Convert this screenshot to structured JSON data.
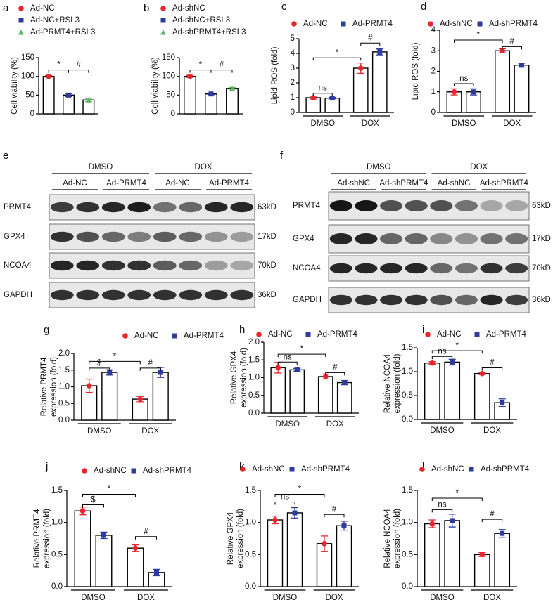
{
  "chart_data": [
    {
      "type": "bar",
      "panel": "a",
      "ylabel": "Cell viability (%)",
      "ylim": [
        0,
        150
      ],
      "yticks": [
        0,
        50,
        100,
        150
      ],
      "categories": [
        null
      ],
      "series": [
        {
          "name": "Ad-NC",
          "color": "#e6262b",
          "marker": "circle",
          "values": [
            100
          ],
          "errors": [
            2
          ]
        },
        {
          "name": "Ad-NC+RSL3",
          "color": "#2f3a9e",
          "marker": "square",
          "values": [
            50
          ],
          "errors": [
            4
          ]
        },
        {
          "name": "Ad-PRMT4+RSL3",
          "color": "#5cb85c",
          "marker": "triangle",
          "values": [
            37
          ],
          "errors": [
            4
          ]
        }
      ],
      "annotations": [
        "*",
        "#"
      ]
    },
    {
      "type": "bar",
      "panel": "b",
      "ylabel": "Cell viability (%)",
      "ylim": [
        0,
        150
      ],
      "yticks": [
        0,
        50,
        100,
        150
      ],
      "categories": [
        null
      ],
      "series": [
        {
          "name": "Ad-shNC",
          "color": "#e6262b",
          "marker": "circle",
          "values": [
            100
          ],
          "errors": [
            3
          ]
        },
        {
          "name": "Ad-shNC+RSL3",
          "color": "#2f3a9e",
          "marker": "square",
          "values": [
            53
          ],
          "errors": [
            2
          ]
        },
        {
          "name": "Ad-shPRMT4+RSL3",
          "color": "#5cb85c",
          "marker": "triangle",
          "values": [
            68
          ],
          "errors": [
            2
          ]
        }
      ],
      "annotations": [
        "*",
        "#"
      ]
    },
    {
      "type": "bar",
      "panel": "c",
      "ylabel": "Lipid ROS (fold)",
      "ylim": [
        0,
        5
      ],
      "yticks": [
        0,
        1,
        2,
        3,
        4,
        5
      ],
      "categories": [
        "DMSO",
        "DOX"
      ],
      "series": [
        {
          "name": "Ad-NC",
          "color": "#e6262b",
          "marker": "circle",
          "values": [
            1.0,
            3.0
          ],
          "errors": [
            0.1,
            0.35
          ]
        },
        {
          "name": "Ad-PRMT4",
          "color": "#2f3a9e",
          "marker": "square",
          "values": [
            0.97,
            4.1
          ],
          "errors": [
            0.05,
            0.2
          ]
        }
      ],
      "annotations": [
        "ns",
        "*",
        "#"
      ]
    },
    {
      "type": "bar",
      "panel": "d",
      "ylabel": "Lipid ROS (fold)",
      "ylim": [
        0,
        4
      ],
      "yticks": [
        0,
        1,
        2,
        3,
        4
      ],
      "categories": [
        "DMSO",
        "DOX"
      ],
      "series": [
        {
          "name": "Ad-shNC",
          "color": "#e6262b",
          "marker": "circle",
          "values": [
            1.0,
            3.0
          ],
          "errors": [
            0.15,
            0.1
          ]
        },
        {
          "name": "Ad-shPRMT4",
          "color": "#2f3a9e",
          "marker": "square",
          "values": [
            1.0,
            2.3
          ],
          "errors": [
            0.15,
            0.1
          ]
        }
      ],
      "annotations": [
        "ns",
        "*",
        "#"
      ]
    },
    {
      "type": "bar",
      "panel": "g",
      "ylabel": [
        "Relative PRMT4",
        "expression (fold)"
      ],
      "ylim": [
        0,
        2
      ],
      "yticks": [
        {
          "value": 0,
          "label": "0.0"
        },
        0.5,
        {
          "value": 1,
          "label": "1.0"
        },
        1.5,
        {
          "value": 2,
          "label": "2.0"
        }
      ],
      "categories": [
        "DMSO",
        "DOX"
      ],
      "series": [
        {
          "name": "Ad-NC",
          "color": "#e6262b",
          "marker": "circle",
          "values": [
            1.03,
            0.63
          ],
          "errors": [
            0.2,
            0.08
          ]
        },
        {
          "name": "Ad-PRMT4",
          "color": "#2f3a9e",
          "marker": "square",
          "values": [
            1.43,
            1.43
          ],
          "errors": [
            0.08,
            0.15
          ]
        }
      ],
      "annotations": [
        "$",
        "*",
        "#"
      ]
    },
    {
      "type": "bar",
      "panel": "h",
      "ylabel": [
        "Relative GPX4",
        "expression (fold)"
      ],
      "ylim": [
        0,
        2
      ],
      "yticks": [
        {
          "value": 0,
          "label": "0.0"
        },
        0.5,
        {
          "value": 1,
          "label": "1.0"
        },
        1.5,
        {
          "value": 2,
          "label": "2.0"
        }
      ],
      "categories": [
        "DMSO",
        "DOX"
      ],
      "series": [
        {
          "name": "Ad-NC",
          "color": "#e6262b",
          "marker": "circle",
          "values": [
            1.28,
            1.03
          ],
          "errors": [
            0.15,
            0.07
          ]
        },
        {
          "name": "Ad-PRMT4",
          "color": "#2f3a9e",
          "marker": "square",
          "values": [
            1.22,
            0.86
          ],
          "errors": [
            0.04,
            0.06
          ]
        }
      ],
      "annotations": [
        "ns",
        "*",
        "#"
      ]
    },
    {
      "type": "bar",
      "panel": "i",
      "ylabel": [
        "Relative NCOA4",
        "expression (fold)"
      ],
      "ylim": [
        0,
        1.5
      ],
      "yticks": [
        {
          "value": 0,
          "label": "0.0"
        },
        0.5,
        {
          "value": 1,
          "label": "1.0"
        },
        1.5
      ],
      "categories": [
        "DMSO",
        "DOX"
      ],
      "series": [
        {
          "name": "Ad-NC",
          "color": "#e6262b",
          "marker": "circle",
          "values": [
            1.18,
            0.96
          ],
          "errors": [
            0.03,
            0.02
          ]
        },
        {
          "name": "Ad-PRMT4",
          "color": "#2f3a9e",
          "marker": "square",
          "values": [
            1.2,
            0.35
          ],
          "errors": [
            0.06,
            0.08
          ]
        }
      ],
      "annotations": [
        "ns",
        "*",
        "#"
      ]
    },
    {
      "type": "bar",
      "panel": "j",
      "ylabel": [
        "Relative PRMT4",
        "expression (fold)"
      ],
      "ylim": [
        0,
        1.5
      ],
      "yticks": [
        {
          "value": 0,
          "label": "0.0"
        },
        0.5,
        {
          "value": 1,
          "label": "1.0"
        },
        1.5
      ],
      "categories": [
        "DMSO",
        "DOX"
      ],
      "series": [
        {
          "name": "Ad-shNC",
          "color": "#e6262b",
          "marker": "circle",
          "values": [
            1.18,
            0.6
          ],
          "errors": [
            0.06,
            0.05
          ]
        },
        {
          "name": "Ad-shPRMT4",
          "color": "#2f3a9e",
          "marker": "square",
          "values": [
            0.8,
            0.22
          ],
          "errors": [
            0.05,
            0.05
          ]
        }
      ],
      "annotations": [
        "$",
        "*",
        "#"
      ]
    },
    {
      "type": "bar",
      "panel": "k",
      "ylabel": [
        "Relative GPX4",
        "expression (fold)"
      ],
      "ylim": [
        0,
        1.5
      ],
      "yticks": [
        {
          "value": 0,
          "label": "0.0"
        },
        0.5,
        {
          "value": 1,
          "label": "1.0"
        },
        1.5
      ],
      "categories": [
        "DMSO",
        "DOX"
      ],
      "series": [
        {
          "name": "Ad-shNC",
          "color": "#e6262b",
          "marker": "circle",
          "values": [
            1.04,
            0.67
          ],
          "errors": [
            0.06,
            0.12
          ]
        },
        {
          "name": "Ad-shPRMT4",
          "color": "#2f3a9e",
          "marker": "square",
          "values": [
            1.15,
            0.95
          ],
          "errors": [
            0.08,
            0.07
          ]
        }
      ],
      "annotations": [
        "ns",
        "*",
        "#"
      ]
    },
    {
      "type": "bar",
      "panel": "l",
      "ylabel": [
        "Relative NCOA4",
        "expression (fold)"
      ],
      "ylim": [
        0,
        1.5
      ],
      "yticks": [
        {
          "value": 0,
          "label": "0.0"
        },
        0.5,
        {
          "value": 1,
          "label": "1.0"
        },
        1.5
      ],
      "categories": [
        "DMSO",
        "DOX"
      ],
      "series": [
        {
          "name": "Ad-shNC",
          "color": "#e6262b",
          "marker": "circle",
          "values": [
            0.98,
            0.5
          ],
          "errors": [
            0.06,
            0.03
          ]
        },
        {
          "name": "Ad-shPRMT4",
          "color": "#2f3a9e",
          "marker": "square",
          "values": [
            1.03,
            0.83
          ],
          "errors": [
            0.1,
            0.06
          ]
        }
      ],
      "annotations": [
        "ns",
        "*",
        "#"
      ]
    }
  ],
  "blots": [
    {
      "panel": "e",
      "groups": [
        "DMSO",
        "DOX"
      ],
      "lanes": [
        "Ad-NC",
        "Ad-PRMT4",
        "Ad-NC",
        "Ad-PRMT4"
      ],
      "rows": [
        {
          "protein": "PRMT4",
          "size": "63kD"
        },
        {
          "protein": "GPX4",
          "size": "17kD"
        },
        {
          "protein": "NCOA4",
          "size": "70kD"
        },
        {
          "protein": "GAPDH",
          "size": "36kD"
        }
      ]
    },
    {
      "panel": "f",
      "groups": [
        "DMSO",
        "DOX"
      ],
      "lanes": [
        "Ad-shNC",
        "Ad-shPRMT4",
        "Ad-shNC",
        "Ad-shPRMT4"
      ],
      "rows": [
        {
          "protein": "PRMT4",
          "size": "63kD"
        },
        {
          "protein": "GPX4",
          "size": "17kD"
        },
        {
          "protein": "NCOA4",
          "size": "70kD"
        },
        {
          "protein": "GAPDH",
          "size": "36kD"
        }
      ]
    }
  ]
}
